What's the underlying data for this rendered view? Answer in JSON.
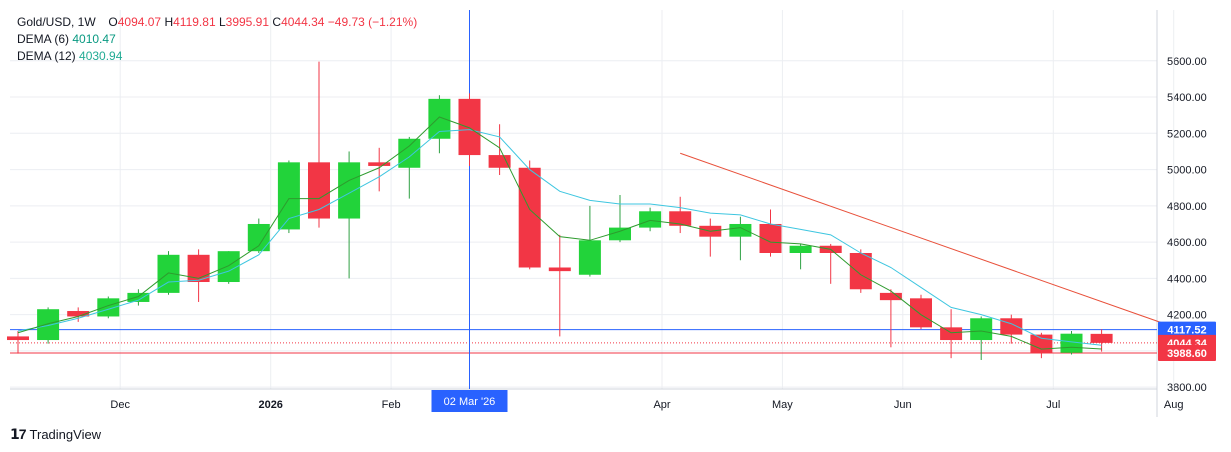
{
  "legend": {
    "symbol": "Gold/USD, 1W",
    "o_label": "O",
    "o_value": "4094.07",
    "h_label": "H",
    "h_value": "4119.81",
    "l_label": "L",
    "l_value": "3995.91",
    "c_label": "C",
    "c_value": "4044.34",
    "change": "−49.73 (−1.21%)",
    "dema6_label": "DEMA (6)",
    "dema6_value": "4010.47",
    "dema12_label": "DEMA (12)",
    "dema12_value": "4030.94"
  },
  "brand": {
    "name": "TradingView"
  },
  "colors": {
    "up": "#22D33A",
    "down": "#F23645",
    "wick_up": "#2EA043",
    "dema6": "#2E9B2E",
    "dema12": "#3EC6E0",
    "trend": "#E8503A",
    "hline_blue": "#2962FF",
    "hline_red": "#F23645",
    "crosshair": "#2962FF",
    "grid": "#ECEEF2",
    "price_tag_blue": "#2962FF",
    "price_tag_red": "#F23645"
  },
  "chart_data": {
    "type": "candlestick",
    "title": "Gold/USD, 1W",
    "ylim": [
      3790,
      5880
    ],
    "yticks": [
      3800,
      4000,
      4200,
      4400,
      4600,
      4800,
      5000,
      5200,
      5400,
      5600
    ],
    "ytick_labels": [
      "3800.00",
      "",
      "4200.00",
      "4400.00",
      "4600.00",
      "4800.00",
      "5000.00",
      "5200.00",
      "5400.00",
      "5600.00"
    ],
    "xlabels": [
      {
        "label": "Dec",
        "index": 2
      },
      {
        "label": "2026",
        "index": 7
      },
      {
        "label": "Feb",
        "index": 11
      },
      {
        "label": "Apr",
        "index": 20
      },
      {
        "label": "May",
        "index": 24
      },
      {
        "label": "Jun",
        "index": 28
      },
      {
        "label": "Jul",
        "index": 33
      },
      {
        "label": "Aug",
        "index": 37
      }
    ],
    "crosshair": {
      "index": 15,
      "label": "02 Mar '26"
    },
    "price_lines": [
      {
        "value": 4117.52,
        "label": "4117.52",
        "color": "blue",
        "style": "solid"
      },
      {
        "value": 4044.34,
        "label": "4044.34",
        "color": "red",
        "style": "dotted"
      },
      {
        "value": 3988.6,
        "label": "3988.60",
        "color": "red",
        "style": "solid"
      }
    ],
    "trendline": {
      "from": {
        "index": 22,
        "value": 5090
      },
      "to": {
        "index": 38.6,
        "value": 4120
      }
    },
    "candles": [
      {
        "o": 4080,
        "h": 4110,
        "l": 3985,
        "c": 4060
      },
      {
        "o": 4060,
        "h": 4240,
        "l": 4040,
        "c": 4230
      },
      {
        "o": 4220,
        "h": 4240,
        "l": 4160,
        "c": 4190
      },
      {
        "o": 4190,
        "h": 4300,
        "l": 4180,
        "c": 4290
      },
      {
        "o": 4270,
        "h": 4340,
        "l": 4250,
        "c": 4320
      },
      {
        "o": 4320,
        "h": 4550,
        "l": 4310,
        "c": 4530
      },
      {
        "o": 4530,
        "h": 4560,
        "l": 4270,
        "c": 4380
      },
      {
        "o": 4380,
        "h": 4550,
        "l": 4370,
        "c": 4550
      },
      {
        "o": 4550,
        "h": 4730,
        "l": 4540,
        "c": 4700
      },
      {
        "o": 4670,
        "h": 5050,
        "l": 4650,
        "c": 5040
      },
      {
        "o": 5040,
        "h": 5595,
        "l": 4680,
        "c": 4730
      },
      {
        "o": 4730,
        "h": 5100,
        "l": 4400,
        "c": 5040
      },
      {
        "o": 5040,
        "h": 5120,
        "l": 4880,
        "c": 5020
      },
      {
        "o": 5010,
        "h": 5180,
        "l": 4840,
        "c": 5170
      },
      {
        "o": 5170,
        "h": 5410,
        "l": 5090,
        "c": 5390
      },
      {
        "o": 5390,
        "h": 5420,
        "l": 5020,
        "c": 5080
      },
      {
        "o": 5080,
        "h": 5250,
        "l": 4970,
        "c": 5010
      },
      {
        "o": 5010,
        "h": 5050,
        "l": 4450,
        "c": 4460
      },
      {
        "o": 4460,
        "h": 4640,
        "l": 4080,
        "c": 4440
      },
      {
        "o": 4420,
        "h": 4800,
        "l": 4410,
        "c": 4610
      },
      {
        "o": 4610,
        "h": 4860,
        "l": 4600,
        "c": 4680
      },
      {
        "o": 4680,
        "h": 4790,
        "l": 4660,
        "c": 4770
      },
      {
        "o": 4770,
        "h": 4850,
        "l": 4650,
        "c": 4690
      },
      {
        "o": 4690,
        "h": 4730,
        "l": 4520,
        "c": 4630
      },
      {
        "o": 4630,
        "h": 4740,
        "l": 4500,
        "c": 4700
      },
      {
        "o": 4700,
        "h": 4780,
        "l": 4520,
        "c": 4540
      },
      {
        "o": 4540,
        "h": 4590,
        "l": 4450,
        "c": 4580
      },
      {
        "o": 4580,
        "h": 4590,
        "l": 4370,
        "c": 4540
      },
      {
        "o": 4540,
        "h": 4560,
        "l": 4320,
        "c": 4340
      },
      {
        "o": 4320,
        "h": 4340,
        "l": 4020,
        "c": 4280
      },
      {
        "o": 4290,
        "h": 4310,
        "l": 4120,
        "c": 4130
      },
      {
        "o": 4130,
        "h": 4230,
        "l": 3960,
        "c": 4060
      },
      {
        "o": 4060,
        "h": 4190,
        "l": 3950,
        "c": 4180
      },
      {
        "o": 4180,
        "h": 4200,
        "l": 4040,
        "c": 4090
      },
      {
        "o": 4090,
        "h": 4100,
        "l": 3960,
        "c": 3990
      },
      {
        "o": 3990,
        "h": 4110,
        "l": 3980,
        "c": 4095
      },
      {
        "o": 4094.07,
        "h": 4119.81,
        "l": 3995.91,
        "c": 4044.34
      }
    ],
    "dema6": [
      4100,
      4150,
      4190,
      4250,
      4300,
      4430,
      4400,
      4470,
      4580,
      4840,
      4840,
      4940,
      5010,
      5130,
      5290,
      5230,
      5120,
      4780,
      4630,
      4610,
      4660,
      4720,
      4700,
      4660,
      4680,
      4600,
      4590,
      4560,
      4420,
      4330,
      4200,
      4100,
      4110,
      4080,
      4010,
      4020,
      4010.47
    ],
    "dema12": [
      4110,
      4140,
      4180,
      4230,
      4280,
      4380,
      4390,
      4440,
      4530,
      4730,
      4780,
      4870,
      4960,
      5070,
      5210,
      5220,
      5180,
      5000,
      4880,
      4830,
      4810,
      4810,
      4790,
      4760,
      4750,
      4700,
      4670,
      4640,
      4540,
      4460,
      4350,
      4240,
      4200,
      4150,
      4070,
      4050,
      4030.94
    ]
  }
}
